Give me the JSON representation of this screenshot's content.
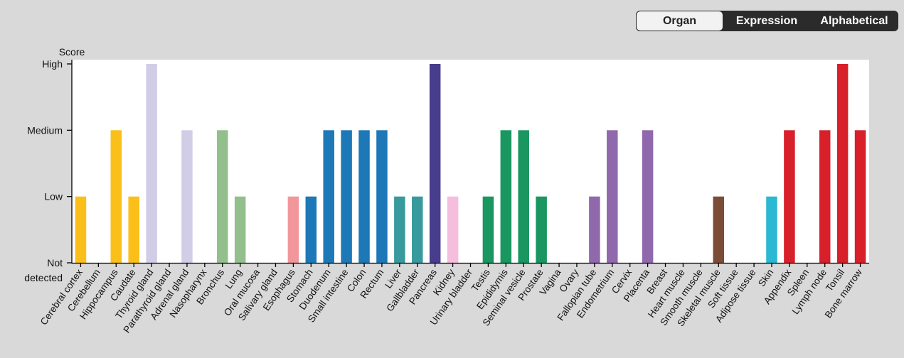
{
  "view_toggle": {
    "options": [
      {
        "label": "Organ",
        "active": true
      },
      {
        "label": "Expression",
        "active": false
      },
      {
        "label": "Alphabetical",
        "active": false
      }
    ]
  },
  "chart_data": {
    "type": "bar",
    "ylabel": "Score",
    "y_levels": [
      "Not detected",
      "Low",
      "Medium",
      "High"
    ],
    "ylim": [
      0,
      3
    ],
    "grid": false,
    "categories": [
      "Cerebral cortex",
      "Cerebellum",
      "Hippocampus",
      "Caudate",
      "Thyroid gland",
      "Parathyroid gland",
      "Adrenal gland",
      "Nasopharynx",
      "Bronchus",
      "Lung",
      "Oral mucosa",
      "Salivary gland",
      "Esophagus",
      "Stomach",
      "Duodenum",
      "Small intestine",
      "Colon",
      "Rectum",
      "Liver",
      "Gallbladder",
      "Pancreas",
      "Kidney",
      "Urinary bladder",
      "Testis",
      "Epididymis",
      "Seminal vesicle",
      "Prostate",
      "Vagina",
      "Ovary",
      "Fallopian tube",
      "Endometrium",
      "Cervix",
      "Placenta",
      "Breast",
      "Heart muscle",
      "Smooth muscle",
      "Skeletal muscle",
      "Soft tissue",
      "Adipose tissue",
      "Skin",
      "Appendix",
      "Spleen",
      "Lymph node",
      "Tonsil",
      "Bone marrow"
    ],
    "values": [
      1,
      0,
      2,
      1,
      3,
      0,
      2,
      0,
      2,
      1,
      0,
      0,
      1,
      1,
      2,
      2,
      2,
      2,
      1,
      1,
      3,
      1,
      0,
      1,
      2,
      2,
      1,
      0,
      0,
      1,
      2,
      0,
      2,
      0,
      0,
      0,
      1,
      0,
      0,
      1,
      2,
      0,
      2,
      3,
      2
    ],
    "colors": [
      "#fbbf1a",
      "#fbbf1a",
      "#fbbf1a",
      "#fbbf1a",
      "#d1cde6",
      "#d1cde6",
      "#d1cde6",
      "#93bf8d",
      "#93bf8d",
      "#93bf8d",
      "#f1969b",
      "#f1969b",
      "#f1969b",
      "#1d78b7",
      "#1d78b7",
      "#1d78b7",
      "#1d78b7",
      "#1d78b7",
      "#389a9c",
      "#389a9c",
      "#483d8d",
      "#f4bedc",
      "#f4bedc",
      "#1a9660",
      "#1a9660",
      "#1a9660",
      "#1a9660",
      "#9068ac",
      "#9068ac",
      "#9068ac",
      "#9068ac",
      "#9068ac",
      "#9068ac",
      "#9068ac",
      "#7b4d37",
      "#7b4d37",
      "#7b4d37",
      "#7b4d37",
      "#7b4d37",
      "#2bb8d2",
      "#d7202a",
      "#d7202a",
      "#d7202a",
      "#d7202a",
      "#d7202a"
    ]
  }
}
